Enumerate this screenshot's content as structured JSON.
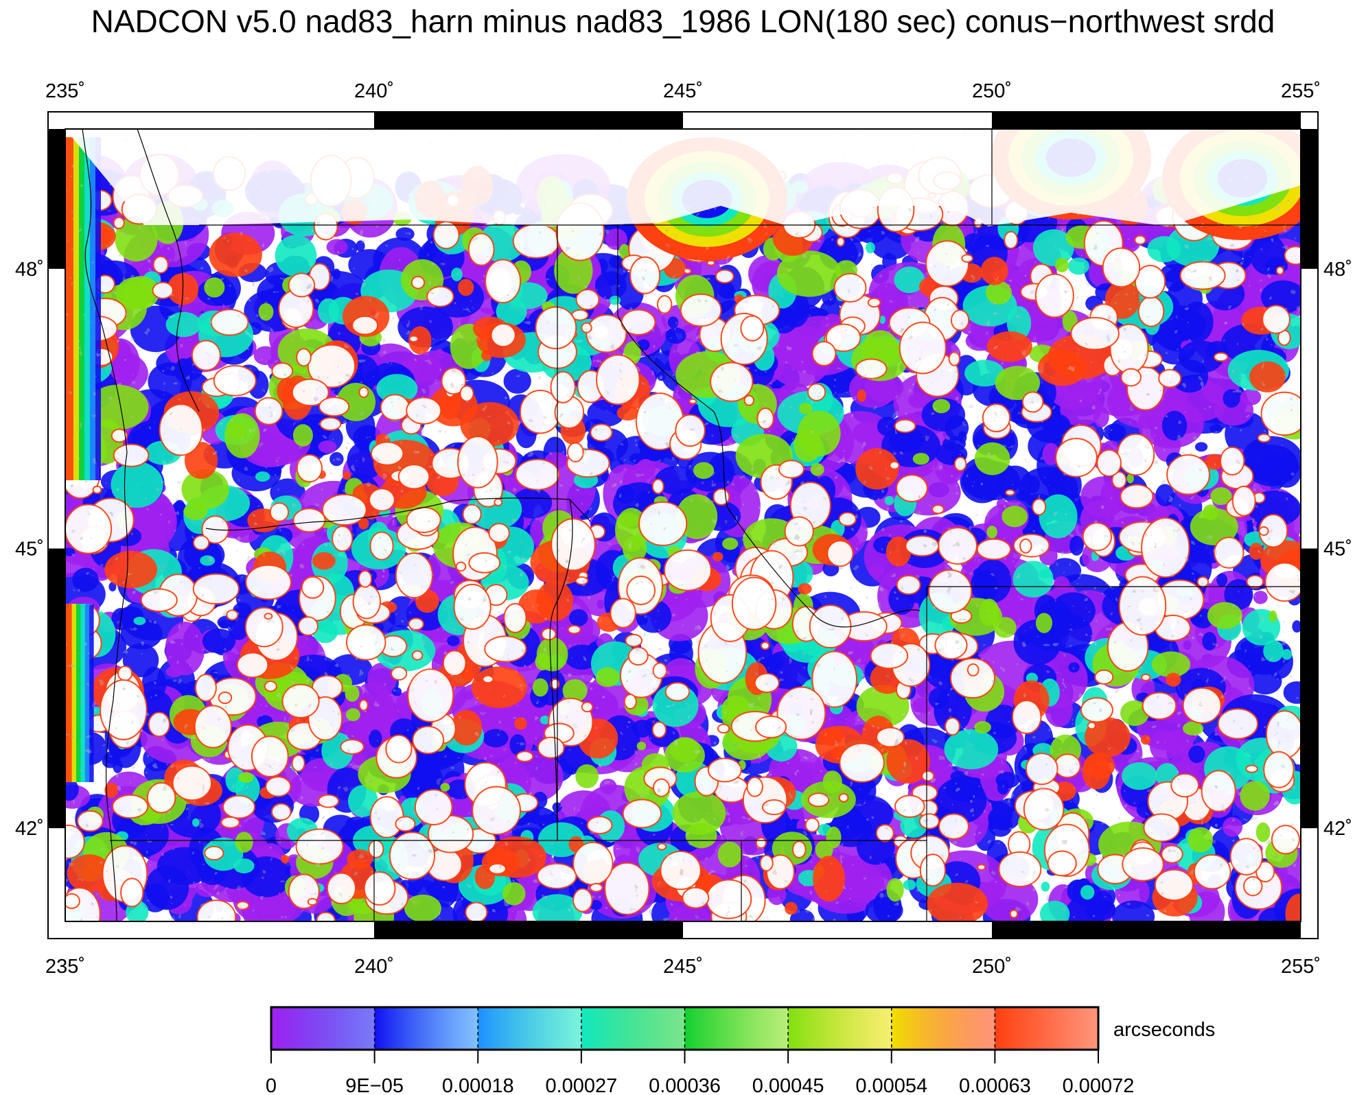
{
  "title": "NADCON v5.0 nad83_harn minus nad83_1986 LON(180 sec) conus−northwest srdd",
  "lon_ticks": [
    {
      "value": 235,
      "label": "235˚"
    },
    {
      "value": 240,
      "label": "240˚"
    },
    {
      "value": 245,
      "label": "245˚"
    },
    {
      "value": 250,
      "label": "250˚"
    },
    {
      "value": 255,
      "label": "255˚"
    }
  ],
  "lat_ticks": [
    {
      "value": 48,
      "label": "48˚"
    },
    {
      "value": 45,
      "label": "45˚"
    },
    {
      "value": 42,
      "label": "42˚"
    }
  ],
  "extent": {
    "lon_min": 235,
    "lon_max": 255,
    "lat_min": 41.0,
    "lat_max": 49.5
  },
  "colorbar": {
    "unit": "arcseconds",
    "labels": [
      "0",
      "9E−05",
      "0.00018",
      "0.00027",
      "0.00036",
      "0.00045",
      "0.00054",
      "0.00063",
      "0.00072"
    ],
    "colors": [
      "#a020f0",
      "#1010f0",
      "#1e90ff",
      "#10e8c0",
      "#10d030",
      "#80e010",
      "#f0e000",
      "#ff4010"
    ]
  },
  "dominant_colors": {
    "low": "#a020f0",
    "blue": "#1010f0",
    "white_fill": "#ffffff",
    "high": "#ff4010"
  }
}
